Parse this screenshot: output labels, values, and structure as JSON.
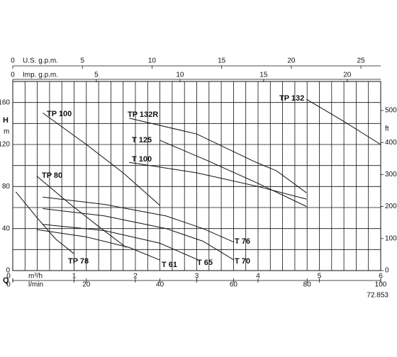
{
  "chart_data": {
    "type": "line",
    "color": "#111111",
    "ylabel": "H",
    "yunit": "m",
    "y2label": "ft",
    "xlabel": "Q",
    "xlim": [
      0,
      6
    ],
    "xticks": [
      0,
      1,
      2,
      3,
      4,
      5,
      6
    ],
    "minor_xticks": [
      0.2,
      0.4,
      0.6,
      0.8,
      1.2,
      1.4,
      1.6,
      1.8,
      2.2,
      2.4,
      2.6,
      2.8,
      3.2,
      3.4,
      3.6,
      3.8,
      4.2,
      4.4,
      4.6,
      4.8,
      5.2,
      5.4,
      5.6,
      5.8
    ],
    "ylim": [
      0,
      180
    ],
    "yticks": [
      0,
      40,
      80,
      120,
      160
    ],
    "minor_yticks": [
      20,
      60,
      100,
      140
    ],
    "y2lim": [
      0,
      590.6
    ],
    "y2ticks": [
      0,
      100,
      200,
      300,
      400,
      500
    ],
    "top_axes": [
      {
        "label": "U.S. g.p.m.",
        "xlim": [
          0,
          26.42
        ],
        "xticks": [
          0,
          5,
          10,
          15,
          20,
          25
        ]
      },
      {
        "label": "Imp. g.p.m.",
        "xlim": [
          0,
          22
        ],
        "xticks": [
          0,
          5,
          10,
          15,
          20
        ]
      }
    ],
    "bottom_axes": [
      {
        "label": "m³/h",
        "xlim": [
          0,
          6
        ],
        "xticks": [
          0,
          1,
          2,
          3,
          4,
          5,
          6
        ]
      },
      {
        "label": "l/min",
        "xlim": [
          0,
          100
        ],
        "xticks": [
          0,
          20,
          40,
          60,
          80,
          100
        ]
      }
    ],
    "series": [
      {
        "name": "TP 100",
        "x": [
          0.49,
          1.2,
          1.8,
          2.4
        ],
        "values": [
          150,
          120,
          93,
          62
        ]
      },
      {
        "name": "TP 132R",
        "x": [
          1.9,
          3,
          3.93,
          4.3,
          4.79
        ],
        "values": [
          145,
          130,
          104,
          95,
          74
        ]
      },
      {
        "name": "T 125",
        "x": [
          2.4,
          3.2,
          4,
          4.79
        ],
        "values": [
          124,
          104,
          83,
          61
        ]
      },
      {
        "name": "T 100",
        "x": [
          1.9,
          3,
          4,
          4.79
        ],
        "values": [
          103,
          93,
          80,
          68
        ]
      },
      {
        "name": "TP 132",
        "x": [
          4.79,
          5.4,
          6
        ],
        "values": [
          163,
          142,
          120
        ]
      },
      {
        "name": "TP 80",
        "x": [
          0.39,
          0.9,
          1.4,
          1.85
        ],
        "values": [
          90,
          65,
          42,
          22
        ]
      },
      {
        "name": "T 76",
        "x": [
          0.49,
          1.5,
          2.5,
          3.1,
          3.61
        ],
        "values": [
          70,
          63,
          52,
          40,
          27
        ]
      },
      {
        "name": "TP 78",
        "x": [
          0.05,
          0.4,
          0.7,
          1.0
        ],
        "values": [
          75,
          50,
          30,
          16
        ]
      },
      {
        "name": "T 61",
        "x": [
          0.39,
          1.2,
          1.9,
          2.4
        ],
        "values": [
          39,
          32,
          22,
          10
        ]
      },
      {
        "name": "T 65",
        "x": [
          0.49,
          1.5,
          2.4,
          3.03
        ],
        "values": [
          44,
          38,
          26,
          10
        ]
      },
      {
        "name": "T 70",
        "x": [
          0.49,
          1.5,
          2.5,
          3.1,
          3.61
        ],
        "values": [
          59,
          52,
          40,
          28,
          10
        ]
      }
    ],
    "code": "72.853"
  }
}
